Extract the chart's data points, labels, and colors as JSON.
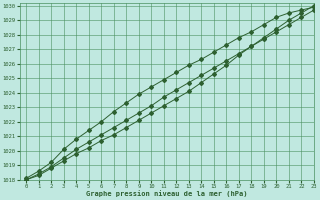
{
  "title": "Graphe pression niveau de la mer (hPa)",
  "bg_color": "#c0e8e0",
  "grid_color": "#4a9060",
  "line_color": "#2d6030",
  "xlim": [
    -0.5,
    23
  ],
  "ylim": [
    1018,
    1030.2
  ],
  "xticks": [
    0,
    1,
    2,
    3,
    4,
    5,
    6,
    7,
    8,
    9,
    10,
    11,
    12,
    13,
    14,
    15,
    16,
    17,
    18,
    19,
    20,
    21,
    22,
    23
  ],
  "yticks": [
    1018,
    1019,
    1020,
    1021,
    1022,
    1023,
    1024,
    1025,
    1026,
    1027,
    1028,
    1029,
    1030
  ],
  "series1": {
    "x": [
      0,
      1,
      2,
      3,
      4,
      5,
      6,
      7,
      8,
      9,
      10,
      11,
      12,
      13,
      14,
      15,
      16,
      17,
      18,
      19,
      20,
      21,
      22,
      23
    ],
    "y": [
      1018.1,
      1018.6,
      1019.2,
      1020.1,
      1020.8,
      1021.4,
      1022.0,
      1022.7,
      1023.3,
      1023.9,
      1024.4,
      1024.9,
      1025.4,
      1025.9,
      1026.3,
      1026.8,
      1027.3,
      1027.8,
      1028.2,
      1028.7,
      1029.2,
      1029.5,
      1029.7,
      1029.9
    ]
  },
  "series2": {
    "x": [
      0,
      1,
      2,
      3,
      4,
      5,
      6,
      7,
      8,
      9,
      10,
      11,
      12,
      13,
      14,
      15,
      16,
      17,
      18,
      19,
      20,
      21,
      22,
      23
    ],
    "y": [
      1018.0,
      1018.4,
      1018.9,
      1019.5,
      1020.1,
      1020.6,
      1021.1,
      1021.6,
      1022.1,
      1022.6,
      1023.1,
      1023.7,
      1024.2,
      1024.7,
      1025.2,
      1025.7,
      1026.2,
      1026.7,
      1027.2,
      1027.7,
      1028.2,
      1028.7,
      1029.2,
      1029.7
    ]
  },
  "series3": {
    "x": [
      0,
      1,
      2,
      3,
      4,
      5,
      6,
      7,
      8,
      9,
      10,
      11,
      12,
      13,
      14,
      15,
      16,
      17,
      18,
      19,
      20,
      21,
      22,
      23
    ],
    "y": [
      1018.0,
      1018.3,
      1018.8,
      1019.3,
      1019.8,
      1020.2,
      1020.7,
      1021.1,
      1021.6,
      1022.1,
      1022.6,
      1023.1,
      1023.6,
      1024.1,
      1024.7,
      1025.3,
      1025.9,
      1026.6,
      1027.2,
      1027.8,
      1028.4,
      1029.0,
      1029.5,
      1030.0
    ]
  }
}
